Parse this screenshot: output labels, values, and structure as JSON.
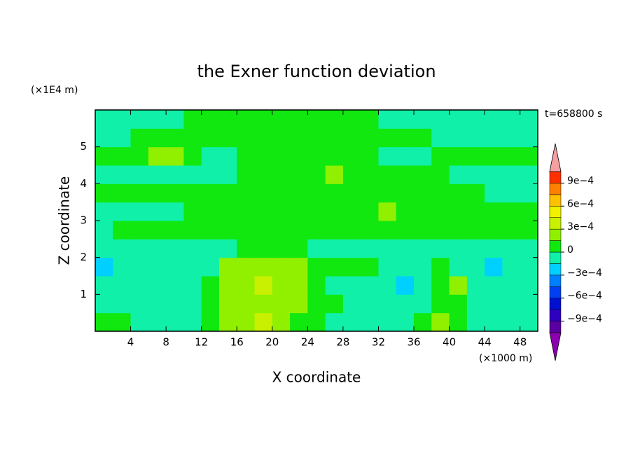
{
  "chart_data": {
    "type": "contour",
    "title": "the Exner function deviation",
    "x_label": "X coordinate",
    "y_label": "Z coordinate",
    "x_unit": "(×1000 m)",
    "y_unit": "(×1E4 m)",
    "time_label": "t=658800 s",
    "xlim": [
      0,
      50
    ],
    "ylim": [
      0,
      6
    ],
    "xticks": [
      4,
      8,
      12,
      16,
      20,
      24,
      28,
      32,
      36,
      40,
      44,
      48
    ],
    "yticks": [
      1,
      2,
      3,
      4,
      5
    ],
    "x": [
      1,
      3,
      5,
      7,
      9,
      11,
      13,
      15,
      17,
      19,
      21,
      23,
      25,
      27,
      29,
      31,
      33,
      35,
      37,
      39,
      41,
      43,
      45,
      47,
      49
    ],
    "z": [
      0.25,
      0.75,
      1.25,
      1.75,
      2.25,
      2.75,
      3.25,
      3.75,
      4.25,
      4.75,
      5.25,
      5.75
    ],
    "values": [
      [
        7e-05,
        7e-05,
        -7e-05,
        -7e-05,
        -7e-05,
        -7e-05,
        7e-05,
        0.00022,
        0.00022,
        0.00037,
        0.00022,
        7e-05,
        7e-05,
        -7e-05,
        -7e-05,
        -7e-05,
        -7e-05,
        -7e-05,
        7e-05,
        0.00022,
        7e-05,
        -7e-05,
        -7e-05,
        -7e-05,
        -7e-05
      ],
      [
        -7e-05,
        -7e-05,
        -7e-05,
        -7e-05,
        -7e-05,
        -7e-05,
        7e-05,
        0.00022,
        0.00022,
        0.00022,
        0.00022,
        0.00022,
        7e-05,
        7e-05,
        -7e-05,
        -7e-05,
        -7e-05,
        -7e-05,
        -7e-05,
        7e-05,
        7e-05,
        -7e-05,
        -7e-05,
        -7e-05,
        -7e-05
      ],
      [
        -7e-05,
        -7e-05,
        -7e-05,
        -7e-05,
        -7e-05,
        -7e-05,
        7e-05,
        0.00022,
        0.00022,
        0.00037,
        0.00022,
        0.00022,
        7e-05,
        -7e-05,
        -7e-05,
        -7e-05,
        -7e-05,
        -0.00022,
        -7e-05,
        7e-05,
        0.00022,
        -7e-05,
        -7e-05,
        -7e-05,
        -7e-05
      ],
      [
        -0.00022,
        -7e-05,
        -7e-05,
        -7e-05,
        -7e-05,
        -7e-05,
        -7e-05,
        0.00022,
        0.00022,
        0.00022,
        0.00022,
        0.00022,
        7e-05,
        7e-05,
        7e-05,
        7e-05,
        -7e-05,
        -7e-05,
        -7e-05,
        7e-05,
        -7e-05,
        -7e-05,
        -0.00022,
        -7e-05,
        -7e-05
      ],
      [
        -7e-05,
        -7e-05,
        -7e-05,
        -7e-05,
        -7e-05,
        -7e-05,
        -7e-05,
        -7e-05,
        7e-05,
        7e-05,
        7e-05,
        7e-05,
        -7e-05,
        -7e-05,
        -7e-05,
        -7e-05,
        -7e-05,
        -7e-05,
        -7e-05,
        -7e-05,
        -7e-05,
        -7e-05,
        -7e-05,
        -7e-05,
        -7e-05
      ],
      [
        -7e-05,
        7e-05,
        7e-05,
        7e-05,
        7e-05,
        7e-05,
        7e-05,
        7e-05,
        7e-05,
        7e-05,
        7e-05,
        7e-05,
        7e-05,
        7e-05,
        7e-05,
        7e-05,
        7e-05,
        7e-05,
        7e-05,
        7e-05,
        7e-05,
        7e-05,
        7e-05,
        7e-05,
        7e-05
      ],
      [
        -7e-05,
        -7e-05,
        -7e-05,
        -7e-05,
        -7e-05,
        7e-05,
        7e-05,
        7e-05,
        7e-05,
        7e-05,
        7e-05,
        7e-05,
        7e-05,
        7e-05,
        7e-05,
        7e-05,
        0.00022,
        7e-05,
        7e-05,
        7e-05,
        7e-05,
        7e-05,
        7e-05,
        7e-05,
        7e-05
      ],
      [
        7e-05,
        7e-05,
        7e-05,
        7e-05,
        7e-05,
        7e-05,
        7e-05,
        7e-05,
        7e-05,
        7e-05,
        7e-05,
        7e-05,
        7e-05,
        7e-05,
        7e-05,
        7e-05,
        7e-05,
        7e-05,
        7e-05,
        7e-05,
        7e-05,
        7e-05,
        -7e-05,
        -7e-05,
        -7e-05
      ],
      [
        -7e-05,
        -7e-05,
        -7e-05,
        -7e-05,
        -7e-05,
        -7e-05,
        -7e-05,
        -7e-05,
        7e-05,
        7e-05,
        7e-05,
        7e-05,
        7e-05,
        0.00022,
        7e-05,
        7e-05,
        7e-05,
        7e-05,
        7e-05,
        7e-05,
        -7e-05,
        -7e-05,
        -7e-05,
        -7e-05,
        -7e-05
      ],
      [
        7e-05,
        7e-05,
        7e-05,
        0.00022,
        0.00022,
        7e-05,
        -7e-05,
        -7e-05,
        7e-05,
        7e-05,
        7e-05,
        7e-05,
        7e-05,
        7e-05,
        7e-05,
        7e-05,
        -7e-05,
        -7e-05,
        -7e-05,
        7e-05,
        7e-05,
        7e-05,
        7e-05,
        7e-05,
        7e-05
      ],
      [
        -7e-05,
        -7e-05,
        7e-05,
        7e-05,
        7e-05,
        7e-05,
        7e-05,
        7e-05,
        7e-05,
        7e-05,
        7e-05,
        7e-05,
        7e-05,
        7e-05,
        7e-05,
        7e-05,
        7e-05,
        7e-05,
        7e-05,
        -7e-05,
        -7e-05,
        -7e-05,
        -7e-05,
        -7e-05,
        -7e-05
      ],
      [
        -7e-05,
        -7e-05,
        -7e-05,
        -7e-05,
        -7e-05,
        7e-05,
        7e-05,
        7e-05,
        7e-05,
        7e-05,
        7e-05,
        7e-05,
        7e-05,
        7e-05,
        7e-05,
        7e-05,
        -7e-05,
        -7e-05,
        -7e-05,
        -7e-05,
        -7e-05,
        -7e-05,
        -7e-05,
        -7e-05,
        -7e-05
      ]
    ],
    "colorbar": {
      "levels": [
        -0.00105,
        -0.0009,
        -0.00075,
        -0.0006,
        -0.00045,
        -0.0003,
        -0.00015,
        0,
        0.00015,
        0.0003,
        0.00045,
        0.0006,
        0.00075,
        0.0009,
        0.00105
      ],
      "colors": [
        "#5a00a0",
        "#3000c0",
        "#0010d0",
        "#0040f0",
        "#0080ff",
        "#00d0ff",
        "#10f0a8",
        "#10e810",
        "#90f000",
        "#c8f000",
        "#f0f000",
        "#ffc000",
        "#ff8000",
        "#ff3000"
      ],
      "under_color": "#8c00b0",
      "over_color": "#f4a0a0",
      "ticks": [
        {
          "value": -0.0009,
          "label": "−9e−4"
        },
        {
          "value": -0.0006,
          "label": "−6e−4"
        },
        {
          "value": -0.0003,
          "label": "−3e−4"
        },
        0,
        {
          "value": 0.0003,
          "label": "3e−4"
        },
        {
          "value": 0.0006,
          "label": "6e−4"
        },
        {
          "value": 0.0009,
          "label": "9e−4"
        }
      ]
    }
  }
}
